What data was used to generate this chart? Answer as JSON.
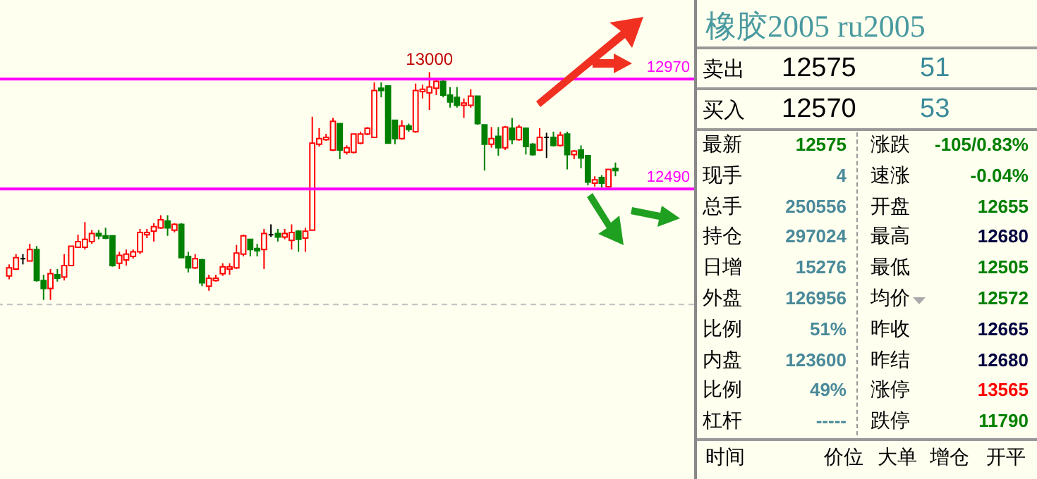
{
  "chart_data": [
    {
      "type": "candlestick",
      "categories": [
        null,
        null,
        null,
        null,
        null,
        null,
        null,
        null,
        null,
        null,
        null,
        null,
        null,
        null,
        null,
        null,
        null,
        null,
        null,
        null,
        null,
        null,
        null,
        null,
        null,
        null,
        null,
        null,
        null,
        null,
        null,
        null,
        null,
        null,
        null,
        null,
        null,
        null,
        null,
        null,
        null,
        null,
        null,
        null,
        null,
        null,
        null,
        null,
        null,
        null,
        null,
        null,
        null,
        null,
        null,
        null,
        null,
        null,
        null,
        null,
        null,
        null,
        null,
        null,
        null,
        null,
        null,
        null,
        null,
        null,
        null,
        null,
        null,
        null,
        null,
        null,
        null,
        null,
        null,
        null,
        null,
        null,
        null,
        null,
        null,
        null,
        null,
        null,
        null
      ],
      "ohlc": [
        [
          12110,
          12160,
          12095,
          12145
        ],
        [
          12140,
          12205,
          12135,
          12190
        ],
        [
          12185,
          12205,
          12160,
          12185
        ],
        [
          12175,
          12250,
          12175,
          12225
        ],
        [
          12225,
          12240,
          12085,
          12090
        ],
        [
          12090,
          12115,
          12005,
          12055
        ],
        [
          12055,
          12140,
          12005,
          12120
        ],
        [
          12115,
          12140,
          12085,
          12100
        ],
        [
          12105,
          12205,
          12090,
          12155
        ],
        [
          12155,
          12240,
          12155,
          12240
        ],
        [
          12235,
          12290,
          12235,
          12260
        ],
        [
          12235,
          12345,
          12225,
          12270
        ],
        [
          12260,
          12310,
          12250,
          12295
        ],
        [
          12295,
          12310,
          12270,
          12285
        ],
        [
          12285,
          12320,
          12270,
          12275
        ],
        [
          12285,
          12285,
          12150,
          12155
        ],
        [
          12165,
          12215,
          12140,
          12200
        ],
        [
          12180,
          12225,
          12155,
          12205
        ],
        [
          12195,
          12225,
          12185,
          12215
        ],
        [
          12215,
          12315,
          12205,
          12300
        ],
        [
          12290,
          12315,
          12275,
          12300
        ],
        [
          12305,
          12340,
          12260,
          12325
        ],
        [
          12320,
          12375,
          12315,
          12355
        ],
        [
          12350,
          12375,
          12285,
          12320
        ],
        [
          12310,
          12340,
          12300,
          12335
        ],
        [
          12335,
          12340,
          12190,
          12190
        ],
        [
          12195,
          12215,
          12125,
          12145
        ],
        [
          12145,
          12205,
          12140,
          12185
        ],
        [
          12180,
          12185,
          12065,
          12080
        ],
        [
          12065,
          12115,
          12045,
          12100
        ],
        [
          12090,
          12115,
          12085,
          12100
        ],
        [
          12120,
          12165,
          12110,
          12150
        ],
        [
          12140,
          12165,
          12115,
          12150
        ],
        [
          12145,
          12245,
          12140,
          12210
        ],
        [
          12205,
          12290,
          12195,
          12285
        ],
        [
          12270,
          12270,
          12195,
          12225
        ],
        [
          12230,
          12250,
          12195,
          12220
        ],
        [
          12225,
          12315,
          12140,
          12295
        ],
        [
          12290,
          12335,
          12280,
          12290
        ],
        [
          12295,
          12315,
          12260,
          12280
        ],
        [
          12280,
          12315,
          12270,
          12295
        ],
        [
          12265,
          12335,
          12225,
          12300
        ],
        [
          12305,
          12310,
          12215,
          12270
        ],
        [
          12275,
          12320,
          12215,
          12305
        ],
        [
          12310,
          12805,
          12310,
          12690
        ],
        [
          12685,
          12755,
          12675,
          12710
        ],
        [
          12705,
          12730,
          12700,
          12715
        ],
        [
          12660,
          12800,
          12655,
          12785
        ],
        [
          12775,
          12775,
          12620,
          12660
        ],
        [
          12650,
          12680,
          12640,
          12670
        ],
        [
          12650,
          12730,
          12645,
          12730
        ],
        [
          12690,
          12740,
          12685,
          12730
        ],
        [
          12730,
          12760,
          12725,
          12755
        ],
        [
          12715,
          12955,
          12715,
          12920
        ],
        [
          12930,
          12955,
          12890,
          12920
        ],
        [
          12940,
          12940,
          12690,
          12690
        ],
        [
          12790,
          12790,
          12685,
          12710
        ],
        [
          12710,
          12790,
          12705,
          12765
        ],
        [
          12765,
          12775,
          12740,
          12750
        ],
        [
          12740,
          12950,
          12735,
          12920
        ],
        [
          12915,
          12945,
          12885,
          12925
        ],
        [
          12910,
          13000,
          12835,
          12935
        ],
        [
          12930,
          12970,
          12900,
          12960
        ],
        [
          12960,
          12970,
          12890,
          12900
        ],
        [
          12900,
          12935,
          12845,
          12870
        ],
        [
          12890,
          12935,
          12845,
          12855
        ],
        [
          12855,
          12885,
          12800,
          12865
        ],
        [
          12855,
          12925,
          12845,
          12895
        ],
        [
          12895,
          12895,
          12770,
          12775
        ],
        [
          12770,
          12770,
          12570,
          12685
        ],
        [
          12685,
          12760,
          12670,
          12710
        ],
        [
          12720,
          12760,
          12635,
          12670
        ],
        [
          12670,
          12765,
          12660,
          12760
        ],
        [
          12755,
          12800,
          12685,
          12705
        ],
        [
          12705,
          12770,
          12700,
          12760
        ],
        [
          12755,
          12755,
          12640,
          12675
        ],
        [
          12685,
          12690,
          12635,
          12640
        ],
        [
          12660,
          12755,
          12655,
          12715
        ],
        [
          12715,
          12735,
          12625,
          12715
        ],
        [
          12715,
          12740,
          12675,
          12680
        ],
        [
          12680,
          12740,
          12675,
          12725
        ],
        [
          12730,
          12740,
          12575,
          12640
        ],
        [
          12640,
          12660,
          12620,
          12655
        ],
        [
          12660,
          12680,
          12580,
          12625
        ],
        [
          12635,
          12635,
          12505,
          12520
        ],
        [
          12515,
          12545,
          12500,
          12530
        ],
        [
          12540,
          12550,
          12495,
          12515
        ],
        [
          12500,
          12575,
          12500,
          12575
        ],
        [
          12580,
          12605,
          12545,
          12570
        ]
      ],
      "ylim": [
        11395,
        13315
      ],
      "tick_labels": false,
      "ref_lines": [
        {
          "axis": "y",
          "value": 12970,
          "label": "12970",
          "color": "#ff00ff"
        },
        {
          "axis": "y",
          "value": 12490,
          "label": "12490",
          "color": "#ff00ff"
        },
        {
          "axis": "y",
          "value": 11985,
          "label": null,
          "color": "#c0c0c0",
          "line_style": "dashed"
        }
      ],
      "annotations": [
        {
          "text": "13000",
          "y": 13000
        }
      ]
    },
    {
      "type": "other",
      "title": "橡胶2005 ru2005",
      "annotations": [
        "卖出",
        "12575",
        "51",
        "买入",
        "12570",
        "53",
        "最新",
        "12575",
        "涨跌",
        "-105/0.83%",
        "现手",
        "4",
        "速涨",
        "-0.04%",
        "总手",
        "250556",
        "开盘",
        "12655",
        "持仓",
        "297024",
        "最高",
        "12680",
        "日增",
        "15276",
        "最低",
        "12505",
        "外盘",
        "126956",
        "均价",
        "12572",
        "比例",
        "51%",
        "昨收",
        "12665",
        "内盘",
        "123600",
        "昨结",
        "12680",
        "比例",
        "49%",
        "涨停",
        "13565",
        "杠杆",
        "-----",
        "跌停",
        "11790",
        "时间",
        "价位",
        "大单",
        "增仓",
        "开平"
      ]
    }
  ]
}
